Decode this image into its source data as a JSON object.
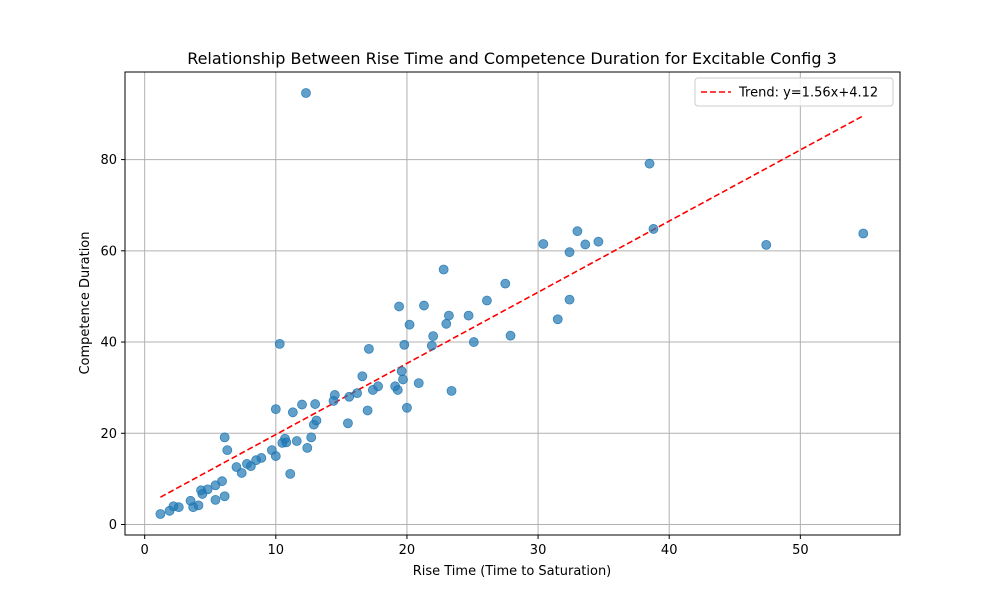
{
  "chart_data": {
    "type": "scatter",
    "title": "Relationship Between Rise Time and Competence Duration for Excitable Config 3",
    "xlabel": "Rise Time (Time to Saturation)",
    "ylabel": "Competence Duration",
    "xlim": [
      -1.5,
      57.6
    ],
    "ylim": [
      -2.3,
      99.2
    ],
    "xticks": [
      0,
      10,
      20,
      30,
      40,
      50
    ],
    "yticks": [
      0,
      20,
      40,
      60,
      80
    ],
    "grid": true,
    "legend_position": "top-right",
    "point_color": "#1f77b4",
    "trend_color": "#ff0000",
    "points": [
      {
        "x": 1.2,
        "y": 2.3
      },
      {
        "x": 1.9,
        "y": 3.0
      },
      {
        "x": 2.2,
        "y": 4.0
      },
      {
        "x": 2.6,
        "y": 3.8
      },
      {
        "x": 3.5,
        "y": 5.2
      },
      {
        "x": 3.7,
        "y": 3.8
      },
      {
        "x": 4.1,
        "y": 4.2
      },
      {
        "x": 4.3,
        "y": 7.5
      },
      {
        "x": 4.4,
        "y": 6.7
      },
      {
        "x": 4.8,
        "y": 7.7
      },
      {
        "x": 5.4,
        "y": 8.6
      },
      {
        "x": 5.4,
        "y": 5.4
      },
      {
        "x": 5.9,
        "y": 9.5
      },
      {
        "x": 6.1,
        "y": 6.2
      },
      {
        "x": 6.1,
        "y": 19.1
      },
      {
        "x": 6.3,
        "y": 16.3
      },
      {
        "x": 7.0,
        "y": 12.6
      },
      {
        "x": 7.4,
        "y": 11.3
      },
      {
        "x": 7.8,
        "y": 13.3
      },
      {
        "x": 8.1,
        "y": 12.8
      },
      {
        "x": 8.5,
        "y": 14.1
      },
      {
        "x": 8.9,
        "y": 14.6
      },
      {
        "x": 9.7,
        "y": 16.3
      },
      {
        "x": 10.0,
        "y": 15.0
      },
      {
        "x": 10.0,
        "y": 25.3
      },
      {
        "x": 10.3,
        "y": 39.6
      },
      {
        "x": 10.5,
        "y": 17.9
      },
      {
        "x": 10.7,
        "y": 18.8
      },
      {
        "x": 10.8,
        "y": 18.0
      },
      {
        "x": 11.1,
        "y": 11.1
      },
      {
        "x": 11.3,
        "y": 24.6
      },
      {
        "x": 11.6,
        "y": 18.3
      },
      {
        "x": 12.0,
        "y": 26.3
      },
      {
        "x": 12.3,
        "y": 94.6
      },
      {
        "x": 12.4,
        "y": 16.8
      },
      {
        "x": 12.7,
        "y": 19.1
      },
      {
        "x": 12.9,
        "y": 21.9
      },
      {
        "x": 13.0,
        "y": 26.4
      },
      {
        "x": 13.1,
        "y": 22.8
      },
      {
        "x": 14.4,
        "y": 27.1
      },
      {
        "x": 14.5,
        "y": 28.4
      },
      {
        "x": 15.5,
        "y": 22.2
      },
      {
        "x": 15.6,
        "y": 28.0
      },
      {
        "x": 16.2,
        "y": 28.8
      },
      {
        "x": 16.6,
        "y": 32.5
      },
      {
        "x": 17.0,
        "y": 25.0
      },
      {
        "x": 17.1,
        "y": 38.5
      },
      {
        "x": 17.4,
        "y": 29.5
      },
      {
        "x": 17.8,
        "y": 30.3
      },
      {
        "x": 19.1,
        "y": 30.3
      },
      {
        "x": 19.3,
        "y": 29.5
      },
      {
        "x": 19.4,
        "y": 47.8
      },
      {
        "x": 19.6,
        "y": 33.6
      },
      {
        "x": 19.7,
        "y": 31.8
      },
      {
        "x": 19.8,
        "y": 39.4
      },
      {
        "x": 20.0,
        "y": 25.6
      },
      {
        "x": 20.2,
        "y": 43.8
      },
      {
        "x": 20.9,
        "y": 31.0
      },
      {
        "x": 21.3,
        "y": 48.0
      },
      {
        "x": 21.9,
        "y": 39.2
      },
      {
        "x": 22.0,
        "y": 41.3
      },
      {
        "x": 22.8,
        "y": 55.9
      },
      {
        "x": 23.0,
        "y": 44.0
      },
      {
        "x": 23.2,
        "y": 45.8
      },
      {
        "x": 23.4,
        "y": 29.3
      },
      {
        "x": 24.7,
        "y": 45.8
      },
      {
        "x": 25.1,
        "y": 40.0
      },
      {
        "x": 26.1,
        "y": 49.1
      },
      {
        "x": 27.5,
        "y": 52.8
      },
      {
        "x": 27.9,
        "y": 41.4
      },
      {
        "x": 30.4,
        "y": 61.5
      },
      {
        "x": 31.5,
        "y": 45.0
      },
      {
        "x": 32.4,
        "y": 59.7
      },
      {
        "x": 32.4,
        "y": 49.3
      },
      {
        "x": 33.0,
        "y": 64.3
      },
      {
        "x": 33.6,
        "y": 61.4
      },
      {
        "x": 34.6,
        "y": 62.0
      },
      {
        "x": 38.5,
        "y": 79.1
      },
      {
        "x": 38.8,
        "y": 64.8
      },
      {
        "x": 47.4,
        "y": 61.3
      },
      {
        "x": 54.8,
        "y": 63.8
      }
    ],
    "trend": {
      "label": "Trend: y=1.56x+4.12",
      "slope": 1.56,
      "intercept": 4.12,
      "x_range": [
        1.2,
        54.8
      ],
      "style": "dashed"
    }
  }
}
